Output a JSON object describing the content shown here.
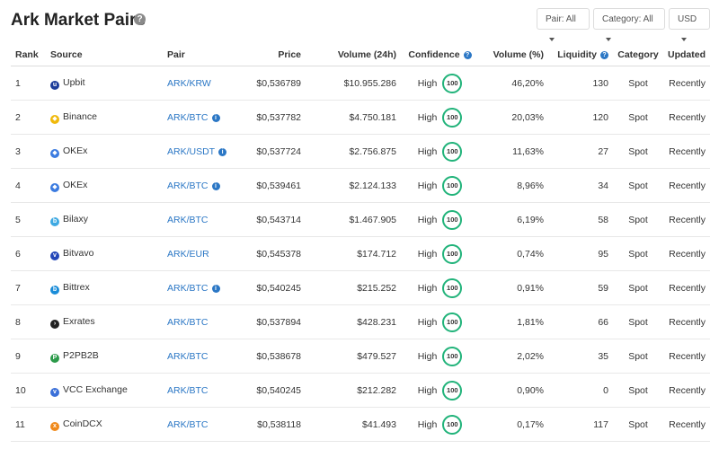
{
  "header": {
    "title": "Ark Market Pairs",
    "filters": {
      "pair": "Pair: All",
      "category": "Category: All",
      "currency": "USD"
    }
  },
  "columns": {
    "rank": "Rank",
    "source": "Source",
    "pair": "Pair",
    "price": "Price",
    "volume": "Volume (24h)",
    "confidence": "Confidence",
    "volume_pct": "Volume (%)",
    "liquidity": "Liquidity",
    "category": "Category",
    "updated": "Updated"
  },
  "rows": [
    {
      "rank": "1",
      "source": "Upbit",
      "pair": "ARK/KRW",
      "price": "$0,536789",
      "volume": "$10.955.286",
      "confidence": "High",
      "score": "100",
      "volume_pct": "46,20%",
      "liquidity": "130",
      "category": "Spot",
      "updated": "Recently",
      "info": false,
      "icon_color": "#1c3c9a",
      "icon": "upbit-icon",
      "glyph": "u"
    },
    {
      "rank": "2",
      "source": "Binance",
      "pair": "ARK/BTC",
      "price": "$0,537782",
      "volume": "$4.750.181",
      "confidence": "High",
      "score": "100",
      "volume_pct": "20,03%",
      "liquidity": "120",
      "category": "Spot",
      "updated": "Recently",
      "info": true,
      "icon_color": "#f0b90b",
      "icon": "binance-icon",
      "glyph": "◆"
    },
    {
      "rank": "3",
      "source": "OKEx",
      "pair": "ARK/USDT",
      "price": "$0,537724",
      "volume": "$2.756.875",
      "confidence": "High",
      "score": "100",
      "volume_pct": "11,63%",
      "liquidity": "27",
      "category": "Spot",
      "updated": "Recently",
      "info": true,
      "icon_color": "#3b7be0",
      "icon": "okex-icon",
      "glyph": "◆"
    },
    {
      "rank": "4",
      "source": "OKEx",
      "pair": "ARK/BTC",
      "price": "$0,539461",
      "volume": "$2.124.133",
      "confidence": "High",
      "score": "100",
      "volume_pct": "8,96%",
      "liquidity": "34",
      "category": "Spot",
      "updated": "Recently",
      "info": true,
      "icon_color": "#3b7be0",
      "icon": "okex-icon",
      "glyph": "◆"
    },
    {
      "rank": "5",
      "source": "Bilaxy",
      "pair": "ARK/BTC",
      "price": "$0,543714",
      "volume": "$1.467.905",
      "confidence": "High",
      "score": "100",
      "volume_pct": "6,19%",
      "liquidity": "58",
      "category": "Spot",
      "updated": "Recently",
      "info": false,
      "icon_color": "#3ea9e2",
      "icon": "bilaxy-icon",
      "glyph": "b"
    },
    {
      "rank": "6",
      "source": "Bitvavo",
      "pair": "ARK/EUR",
      "price": "$0,545378",
      "volume": "$174.712",
      "confidence": "High",
      "score": "100",
      "volume_pct": "0,74%",
      "liquidity": "95",
      "category": "Spot",
      "updated": "Recently",
      "info": false,
      "icon_color": "#2346b8",
      "icon": "bitvavo-icon",
      "glyph": "v"
    },
    {
      "rank": "7",
      "source": "Bittrex",
      "pair": "ARK/BTC",
      "price": "$0,540245",
      "volume": "$215.252",
      "confidence": "High",
      "score": "100",
      "volume_pct": "0,91%",
      "liquidity": "59",
      "category": "Spot",
      "updated": "Recently",
      "info": true,
      "icon_color": "#1a8cd8",
      "icon": "bittrex-icon",
      "glyph": "b"
    },
    {
      "rank": "8",
      "source": "Exrates",
      "pair": "ARK/BTC",
      "price": "$0,537894",
      "volume": "$428.231",
      "confidence": "High",
      "score": "100",
      "volume_pct": "1,81%",
      "liquidity": "66",
      "category": "Spot",
      "updated": "Recently",
      "info": false,
      "icon_color": "#222222",
      "icon": "exrates-icon",
      "glyph": "›"
    },
    {
      "rank": "9",
      "source": "P2PB2B",
      "pair": "ARK/BTC",
      "price": "$0,538678",
      "volume": "$479.527",
      "confidence": "High",
      "score": "100",
      "volume_pct": "2,02%",
      "liquidity": "35",
      "category": "Spot",
      "updated": "Recently",
      "info": false,
      "icon_color": "#2c9a4a",
      "icon": "p2pb2b-icon",
      "glyph": "P"
    },
    {
      "rank": "10",
      "source": "VCC Exchange",
      "pair": "ARK/BTC",
      "price": "$0,540245",
      "volume": "$212.282",
      "confidence": "High",
      "score": "100",
      "volume_pct": "0,90%",
      "liquidity": "0",
      "category": "Spot",
      "updated": "Recently",
      "info": false,
      "icon_color": "#3a6fd8",
      "icon": "vcc-exchange-icon",
      "glyph": "v"
    },
    {
      "rank": "11",
      "source": "CoinDCX",
      "pair": "ARK/BTC",
      "price": "$0,538118",
      "volume": "$41.493",
      "confidence": "High",
      "score": "100",
      "volume_pct": "0,17%",
      "liquidity": "117",
      "category": "Spot",
      "updated": "Recently",
      "info": false,
      "icon_color": "#f08a1c",
      "icon": "coindcx-icon",
      "glyph": "x"
    }
  ]
}
